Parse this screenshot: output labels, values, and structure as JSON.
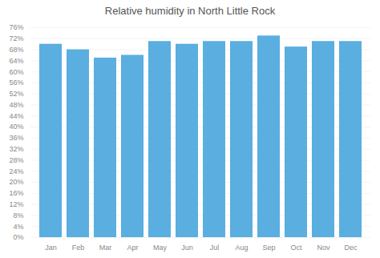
{
  "chart_data": {
    "type": "bar",
    "title": "Relative humidity in North Little Rock",
    "categories": [
      "Jan",
      "Feb",
      "Mar",
      "Apr",
      "May",
      "Jun",
      "Jul",
      "Aug",
      "Sep",
      "Oct",
      "Nov",
      "Dec"
    ],
    "values": [
      70,
      68,
      65,
      66,
      71,
      70,
      71,
      71,
      73,
      69,
      71,
      71
    ],
    "color": "#5aaee0",
    "ylim": [
      0,
      76
    ],
    "yticks": [
      {
        "value": 0,
        "label": "0%"
      },
      {
        "value": 4,
        "label": "4%"
      },
      {
        "value": 8,
        "label": "8%"
      },
      {
        "value": 12,
        "label": "12%"
      },
      {
        "value": 16,
        "label": "16%"
      },
      {
        "value": 20,
        "label": "20%"
      },
      {
        "value": 24,
        "label": "24%"
      },
      {
        "value": 28,
        "label": "28%"
      },
      {
        "value": 32,
        "label": "32%"
      },
      {
        "value": 36,
        "label": "36%"
      },
      {
        "value": 40,
        "label": "40%"
      },
      {
        "value": 44,
        "label": "44%"
      },
      {
        "value": 48,
        "label": "48%"
      },
      {
        "value": 52,
        "label": "52%"
      },
      {
        "value": 56,
        "label": "56%"
      },
      {
        "value": 60,
        "label": "60%"
      },
      {
        "value": 64,
        "label": "64%"
      },
      {
        "value": 68,
        "label": "68%"
      },
      {
        "value": 72,
        "label": "72%"
      },
      {
        "value": 76,
        "label": "76%"
      }
    ],
    "grid": true
  }
}
